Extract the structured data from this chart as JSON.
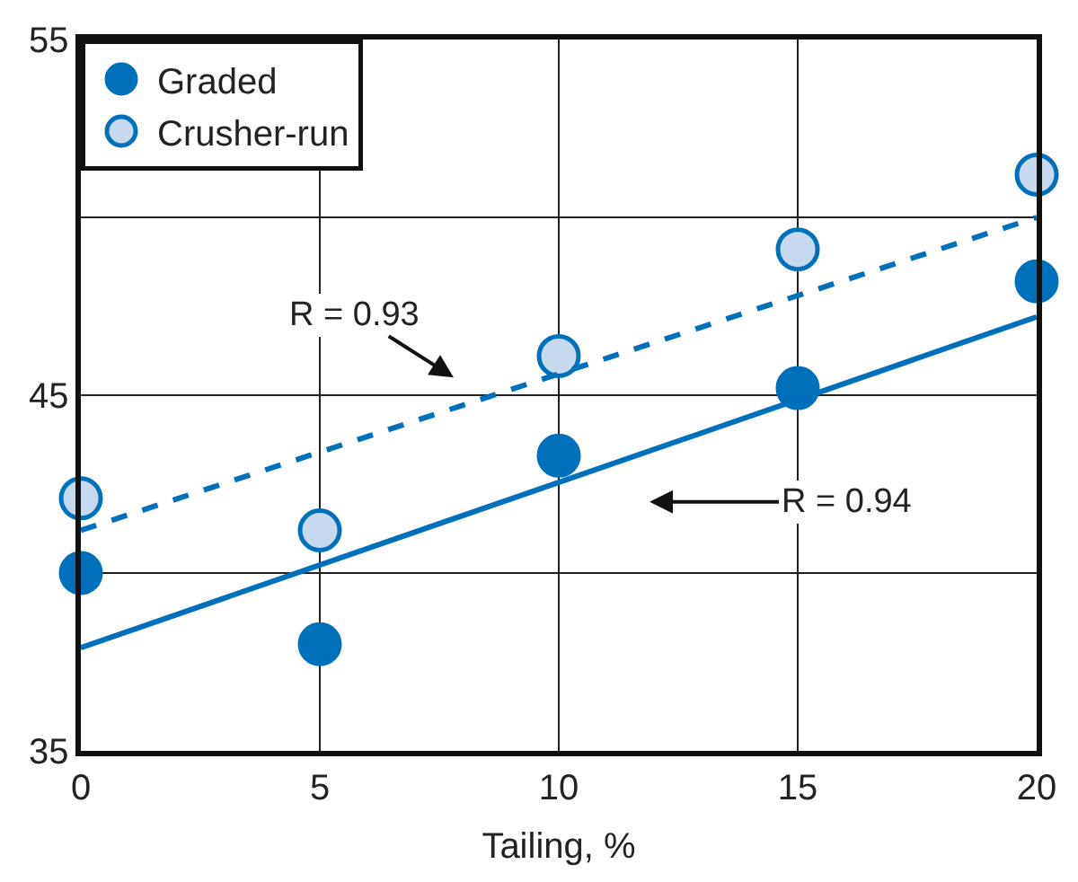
{
  "chart_data": {
    "type": "scatter",
    "xlabel": "Tailing, %",
    "xlim": [
      0,
      20
    ],
    "xticks": [
      0,
      5,
      10,
      15,
      20
    ],
    "ylim": [
      35,
      55
    ],
    "yticks": [
      35,
      {
        "value": 40,
        "label": null
      },
      45,
      {
        "value": 50,
        "label": null
      },
      55
    ],
    "grid": true,
    "legend": "top left",
    "marker": "circle",
    "series": [
      {
        "name": "Graded",
        "color": "#0070bb",
        "x": [
          0,
          5,
          10,
          15,
          20
        ],
        "values": [
          40.0,
          38.0,
          43.3,
          45.2,
          48.2
        ]
      },
      {
        "name": "Crusher-run",
        "color": "#c6d9ef",
        "x": [
          0,
          5,
          10,
          15,
          20
        ],
        "values": [
          42.1,
          41.2,
          46.1,
          49.1,
          51.2
        ]
      },
      {
        "type": "line",
        "color": "#0070bb",
        "x": [
          0,
          20
        ],
        "values": [
          37.9,
          47.2
        ],
        "marker": "none",
        "line_style": "solid"
      },
      {
        "type": "line",
        "color": "#0070bb",
        "x": [
          0,
          20
        ],
        "values": [
          41.2,
          50.0
        ],
        "marker": "none",
        "line_style": "dashed"
      }
    ],
    "annotations": [
      "R = 0.93",
      "R = 0.94"
    ]
  }
}
